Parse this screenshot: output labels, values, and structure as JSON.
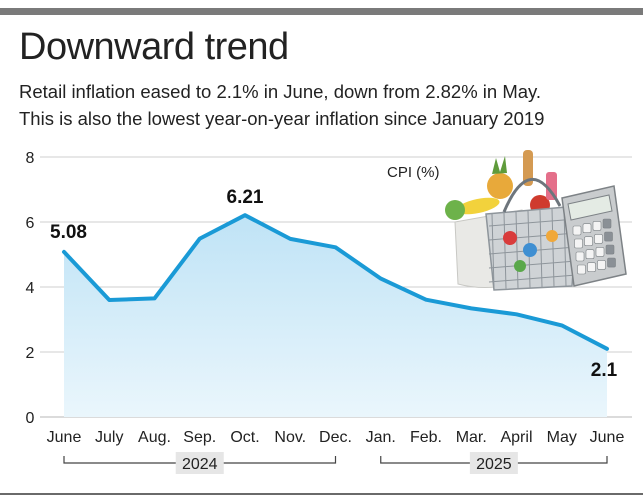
{
  "header": {
    "title": "Downward trend",
    "subtitle_line1": "Retail inflation eased to 2.1% in June, down from 2.82% in May.",
    "subtitle_line2": "This is also the lowest year-on-year inflation since January 2019"
  },
  "chart_data": {
    "type": "area",
    "series_label": "CPI (%)",
    "categories": [
      "June",
      "July",
      "Aug.",
      "Sep.",
      "Oct.",
      "Nov.",
      "Dec.",
      "Jan.",
      "Feb.",
      "Mar.",
      "April",
      "May",
      "June"
    ],
    "values": [
      5.08,
      3.6,
      3.65,
      5.49,
      6.21,
      5.48,
      5.22,
      4.26,
      3.61,
      3.34,
      3.16,
      2.82,
      2.1
    ],
    "data_labels": [
      {
        "index": 0,
        "text": "5.08"
      },
      {
        "index": 4,
        "text": "6.21"
      },
      {
        "index": 12,
        "text": "2.1"
      }
    ],
    "year_groups": [
      {
        "label": "2024",
        "from": 0,
        "to": 6
      },
      {
        "label": "2025",
        "from": 7,
        "to": 12
      }
    ],
    "yticks": [
      "0",
      "2",
      "4",
      "6",
      "8"
    ],
    "ylim": [
      0,
      8
    ],
    "grid": true,
    "colors": {
      "line": "#1a9ad6",
      "fill_top": "#bfe3f6",
      "fill_bottom": "#eaf6fc",
      "grid": "#cfcfcf",
      "year_box": "#e6e6e6"
    },
    "illustration": "grocery-basket-and-calculator"
  }
}
